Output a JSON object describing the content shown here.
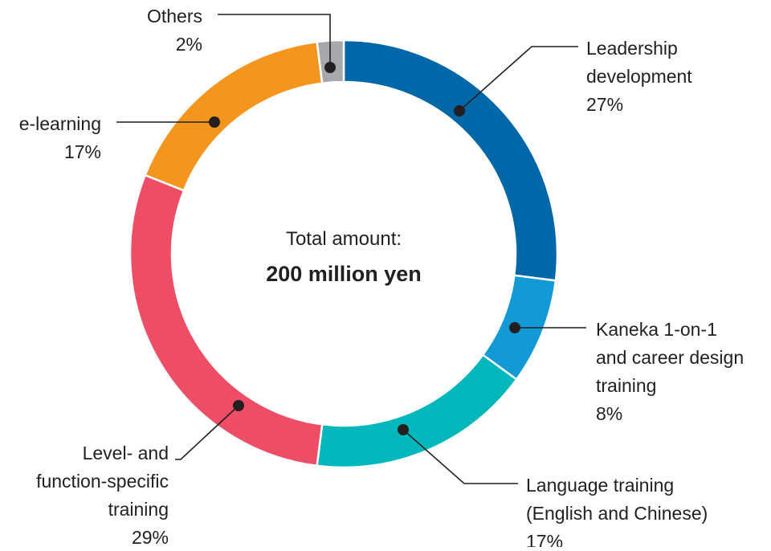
{
  "chart_data": {
    "type": "pie",
    "donut": true,
    "center_text": {
      "line1": "Total amount:",
      "line2": "200 million yen"
    },
    "slices": [
      {
        "lines": [
          "Leadership",
          "development"
        ],
        "value_label": "27%",
        "value": 27,
        "color": "#0067a8"
      },
      {
        "lines": [
          "Kaneka 1-on-1",
          "and career design",
          "training"
        ],
        "value_label": "8%",
        "value": 8,
        "color": "#129ad7"
      },
      {
        "lines": [
          "Language training",
          "(English and Chinese)"
        ],
        "value_label": "17%",
        "value": 17,
        "color": "#00b8bc"
      },
      {
        "lines": [
          "Level- and",
          "function-specific",
          "training"
        ],
        "value_label": "29%",
        "value": 29,
        "color": "#ee4d66"
      },
      {
        "lines": [
          "e-learning"
        ],
        "value_label": "17%",
        "value": 17,
        "color": "#f4961e"
      },
      {
        "lines": [
          "Others"
        ],
        "value_label": "2%",
        "value": 2,
        "color": "#a6a8ab"
      }
    ]
  }
}
